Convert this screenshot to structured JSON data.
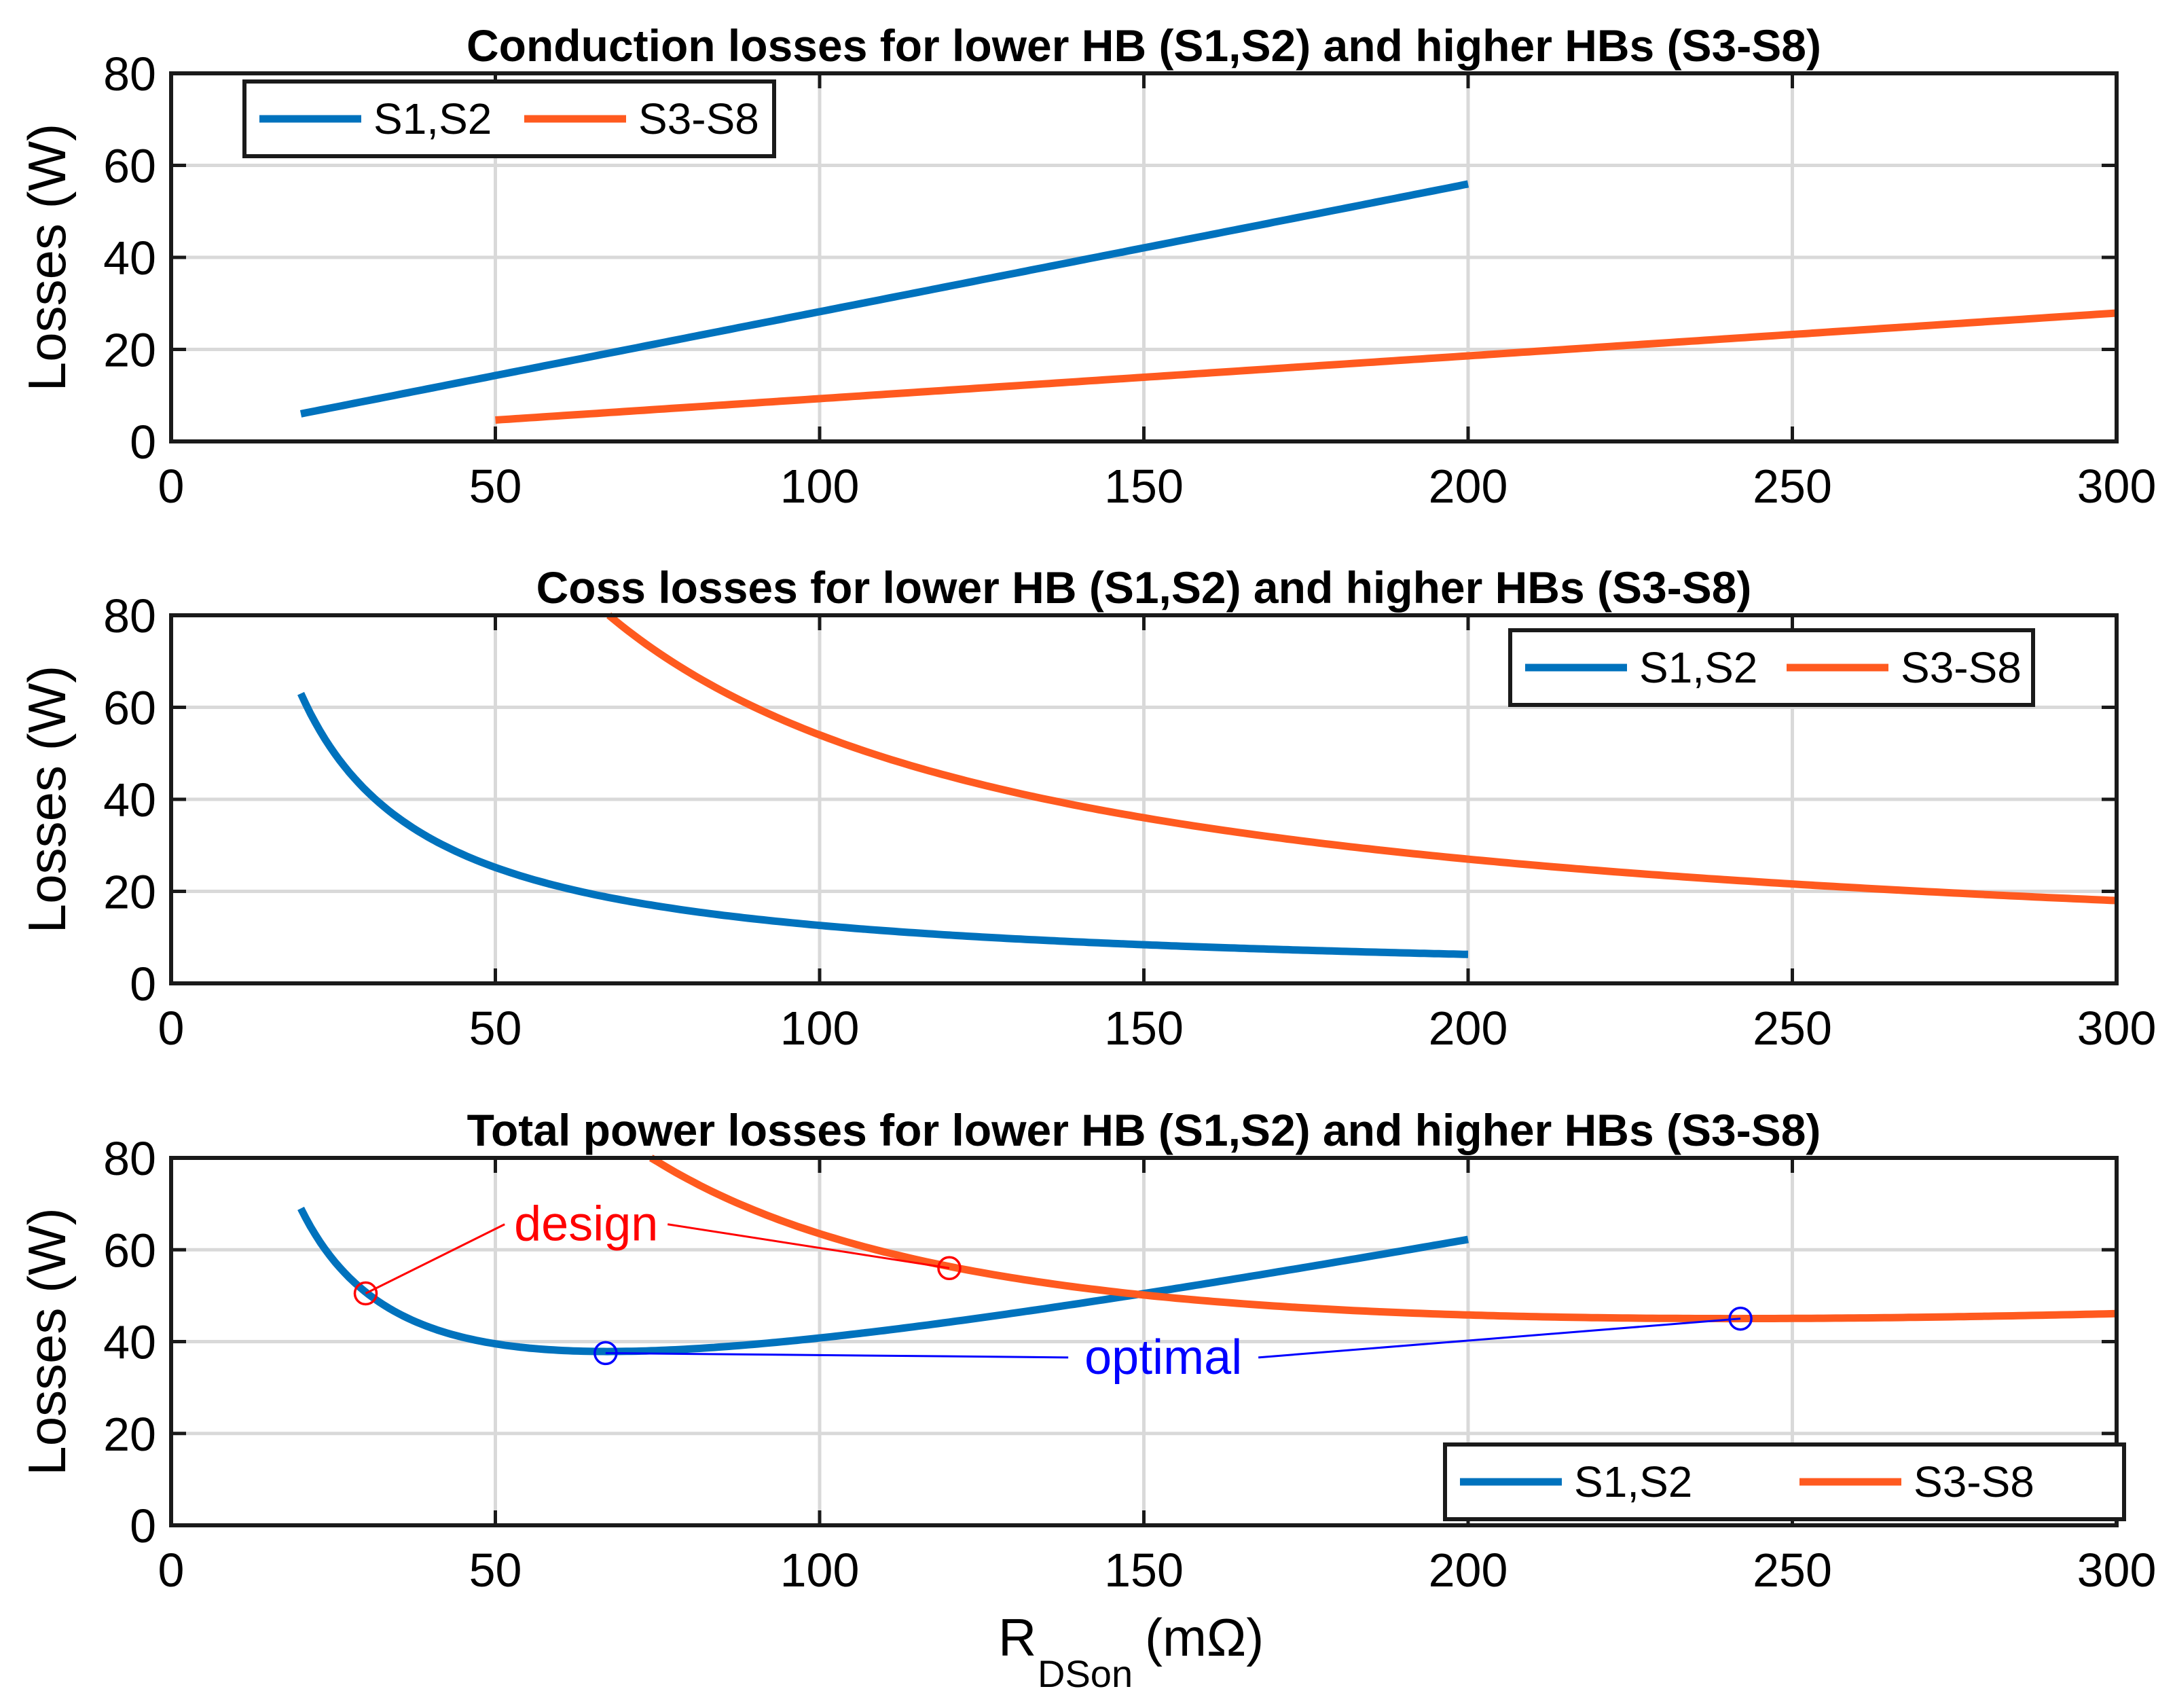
{
  "colors": {
    "s1s2": "#0072BD",
    "s3s8": "#FF5A1F",
    "design": "#FF0000",
    "optimal": "#0000FF",
    "grid": "#d9d9d9",
    "axis": "#1a1a1a"
  },
  "x_axis": {
    "label_main": "R",
    "label_sub": "DSon",
    "label_unit": " (mΩ)"
  },
  "chart_data": [
    {
      "type": "line",
      "title": "Conduction losses for lower HB (S1,S2) and higher HBs (S3-S8)",
      "ylabel": "Losses (W)",
      "xlim": [
        0,
        300
      ],
      "ylim": [
        0,
        80
      ],
      "xticks": [
        0,
        50,
        100,
        150,
        200,
        250,
        300
      ],
      "yticks": [
        0,
        20,
        40,
        60,
        80
      ],
      "grid": true,
      "legend": {
        "position": "top-left",
        "layout": "horizontal"
      },
      "series": [
        {
          "name": "S1,S2",
          "color_key": "s1s2",
          "func": "cond_s12",
          "x_range": [
            20,
            200
          ]
        },
        {
          "name": "S3-S8",
          "color_key": "s3s8",
          "func": "cond_s38",
          "x_range": [
            50,
            300
          ]
        }
      ],
      "sample_points": {
        "S1,S2": [
          [
            20,
            6
          ],
          [
            100,
            28
          ],
          [
            150,
            41.5
          ],
          [
            200,
            55.5
          ]
        ],
        "S3-S8": [
          [
            50,
            4.7
          ],
          [
            100,
            9.3
          ],
          [
            200,
            18.6
          ],
          [
            300,
            27.9
          ]
        ]
      }
    },
    {
      "type": "line",
      "title": "Coss losses for lower HB (S1,S2) and higher HBs (S3-S8)",
      "ylabel": "Losses (W)",
      "xlim": [
        0,
        300
      ],
      "ylim": [
        0,
        80
      ],
      "xticks": [
        0,
        50,
        100,
        150,
        200,
        250,
        300
      ],
      "yticks": [
        0,
        20,
        40,
        60,
        80
      ],
      "grid": true,
      "legend": {
        "position": "top-right",
        "layout": "horizontal"
      },
      "series": [
        {
          "name": "S1,S2",
          "color_key": "s1s2",
          "func": "coss_s12",
          "x_range": [
            20,
            200
          ]
        },
        {
          "name": "S3-S8",
          "color_key": "s3s8",
          "func": "coss_s38",
          "x_range": [
            67.5,
            300
          ]
        }
      ],
      "sample_points": {
        "S1,S2": [
          [
            20,
            63
          ],
          [
            50,
            25
          ],
          [
            100,
            12.6
          ],
          [
            200,
            6.3
          ]
        ],
        "S3-S8": [
          [
            67.5,
            80
          ],
          [
            100,
            54
          ],
          [
            150,
            36
          ],
          [
            200,
            27
          ],
          [
            300,
            18
          ]
        ]
      }
    },
    {
      "type": "line",
      "title": "Total power losses for lower HB (S1,S2) and higher HBs (S3-S8)",
      "ylabel": "Losses (W)",
      "xlim": [
        0,
        300
      ],
      "ylim": [
        0,
        80
      ],
      "xticks": [
        0,
        50,
        100,
        150,
        200,
        250,
        300
      ],
      "yticks": [
        0,
        20,
        40,
        60,
        80
      ],
      "grid": true,
      "legend": {
        "position": "bottom-right",
        "layout": "horizontal"
      },
      "series": [
        {
          "name": "S1,S2",
          "color_key": "s1s2",
          "func": "tot_s12",
          "x_range": [
            20,
            200
          ]
        },
        {
          "name": "S3-S8",
          "color_key": "s3s8",
          "func": "tot_s38",
          "x_range": [
            74,
            300
          ]
        }
      ],
      "sample_points": {
        "S1,S2": [
          [
            20,
            68
          ],
          [
            67,
            37.5
          ],
          [
            150,
            50
          ],
          [
            200,
            62
          ]
        ],
        "S3-S8": [
          [
            74,
            80
          ],
          [
            120,
            56
          ],
          [
            150,
            50
          ],
          [
            242,
            45
          ],
          [
            300,
            45.8
          ]
        ]
      },
      "annotations": [
        {
          "label": "design",
          "color_key": "design",
          "text_at": [
            64,
            62
          ],
          "points": [
            [
              30,
              50.5
            ],
            [
              120,
              56
            ]
          ]
        },
        {
          "label": "optimal",
          "color_key": "optimal",
          "text_at": [
            153,
            33
          ],
          "points": [
            [
              67,
              37.5
            ],
            [
              242,
              45
            ]
          ]
        }
      ]
    }
  ]
}
